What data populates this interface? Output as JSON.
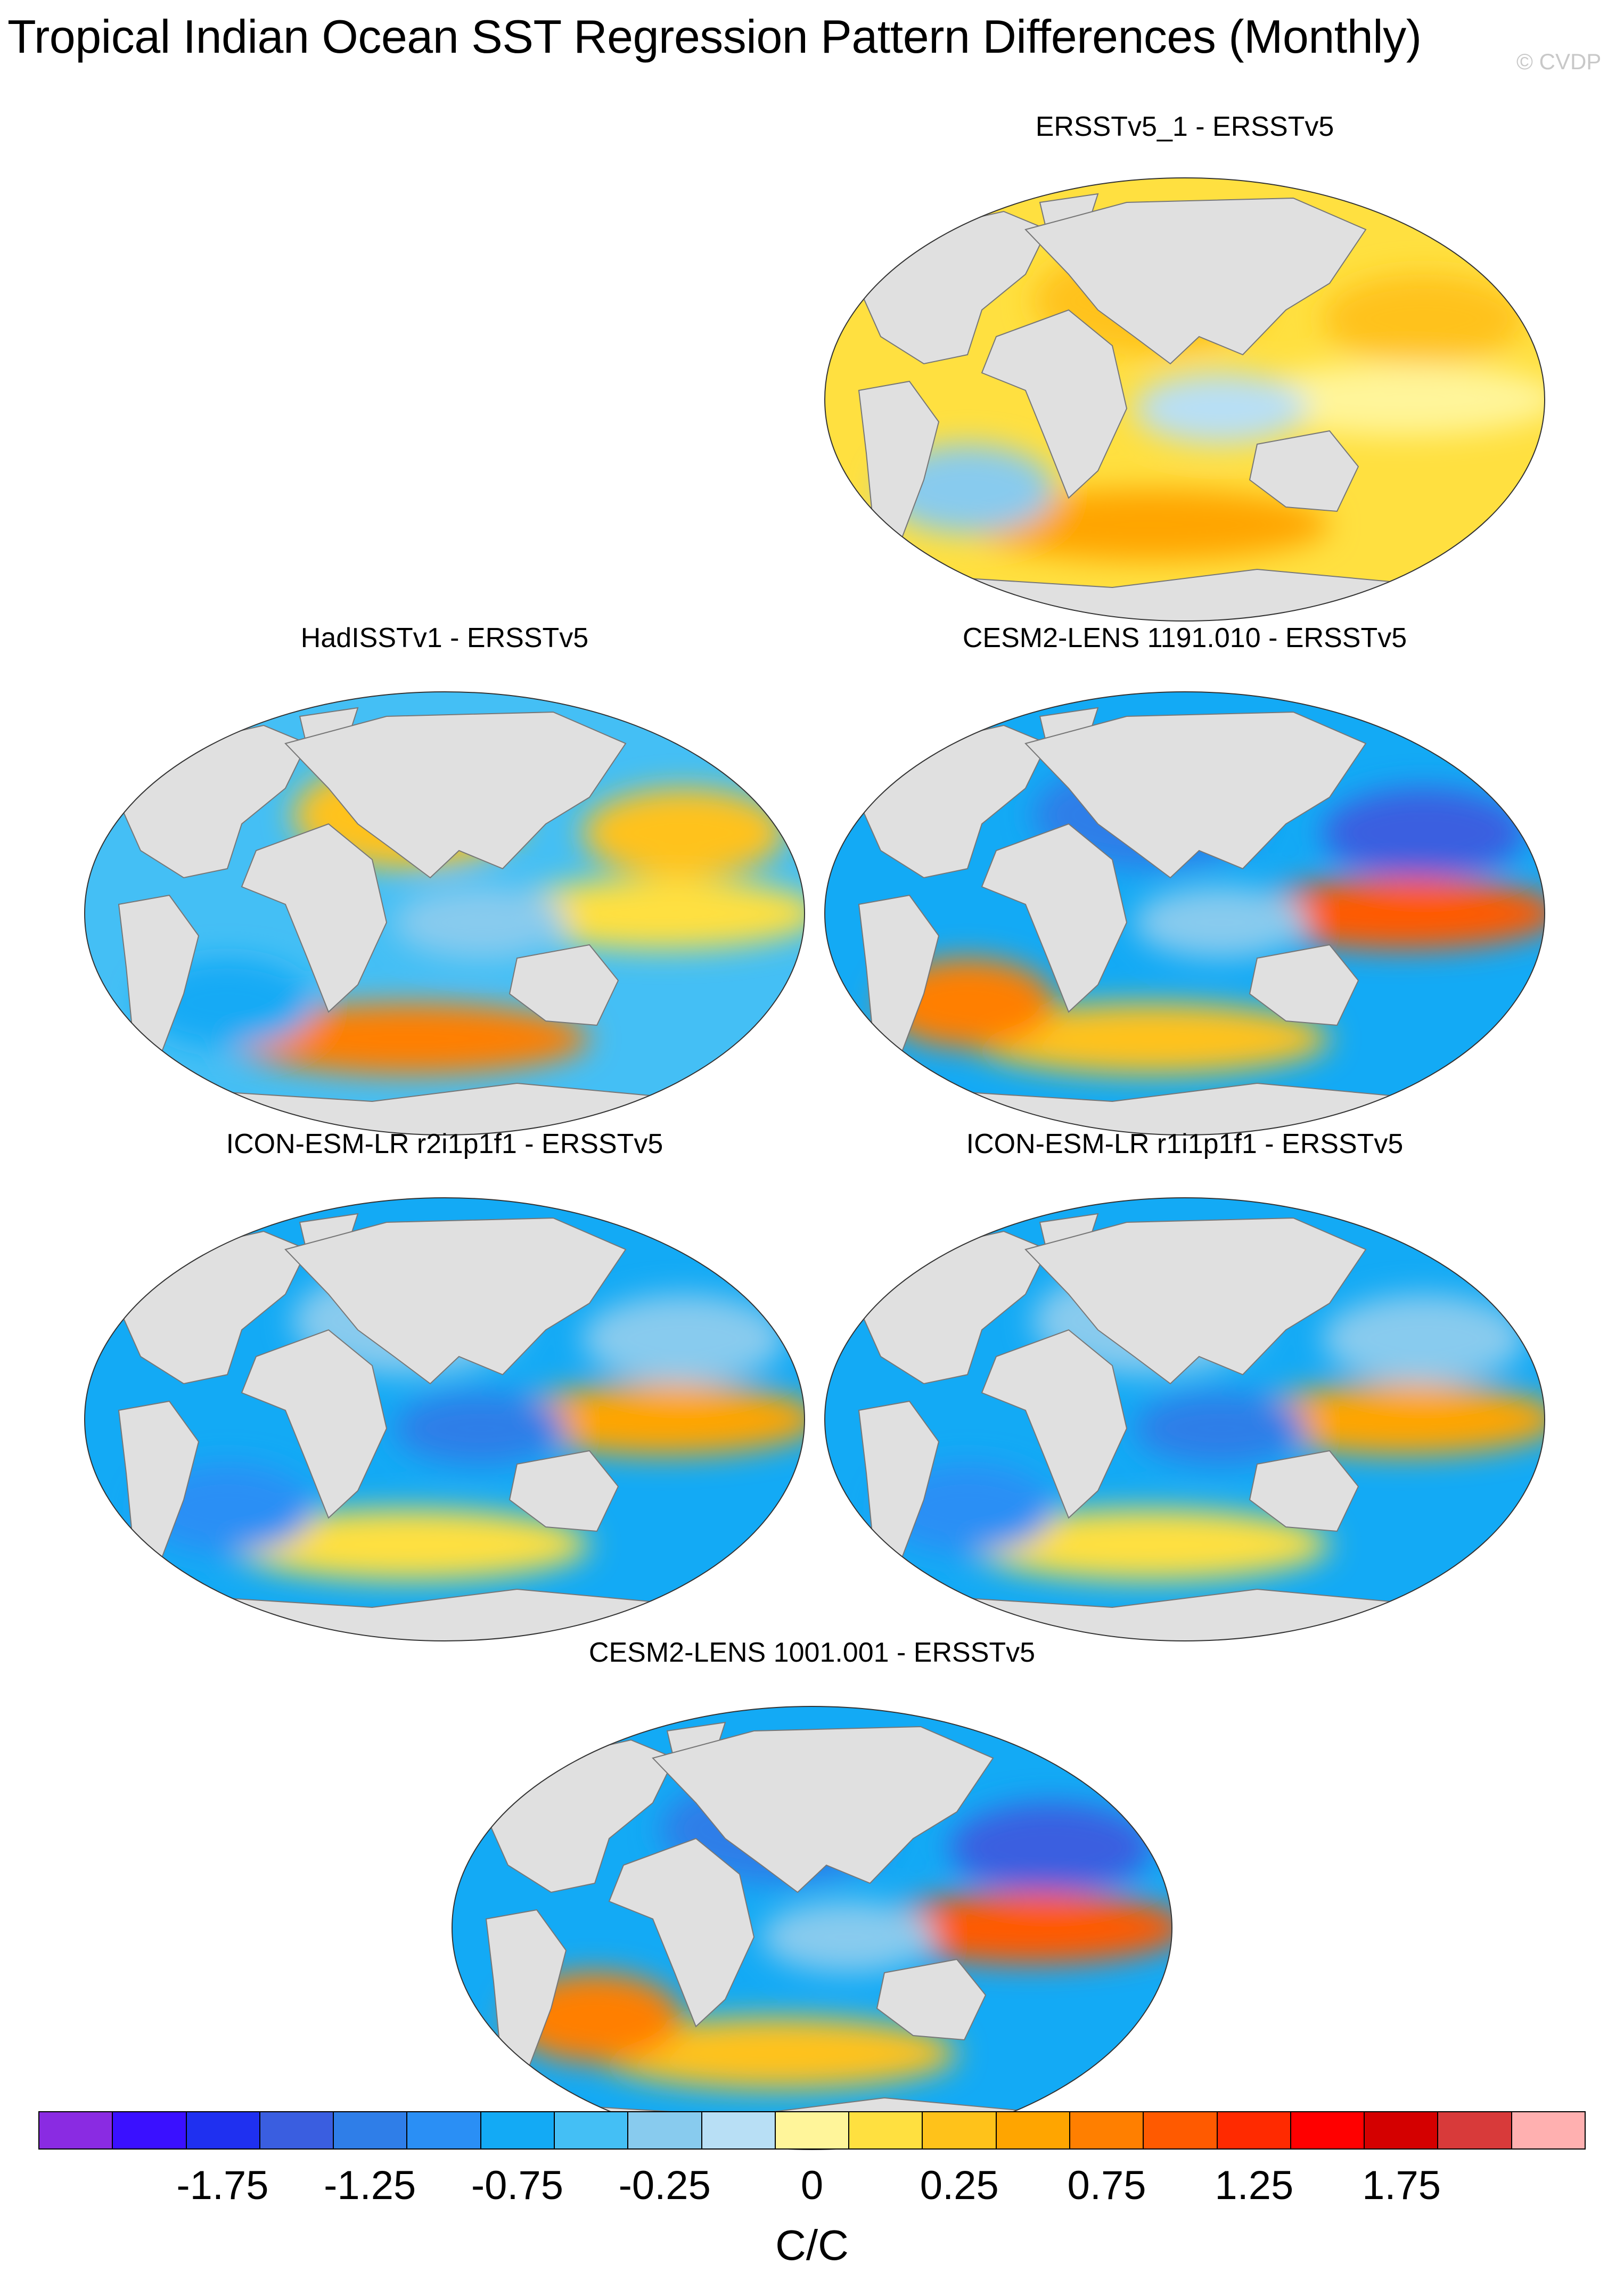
{
  "title": "Tropical Indian Ocean SST Regression Pattern Differences (Monthly)",
  "watermark": "© CVDP",
  "panels": [
    {
      "label": "ERSSTv5_1 - ERSSTv5",
      "pattern": "warm"
    },
    {
      "label": "HadISSTv1 - ERSSTv5",
      "pattern": "mixed"
    },
    {
      "label": "CESM2-LENS 1191.010 - ERSSTv5",
      "pattern": "cool-pacific"
    },
    {
      "label": "ICON-ESM-LR r2i1p1f1 - ERSSTv5",
      "pattern": "cool"
    },
    {
      "label": "ICON-ESM-LR r1i1p1f1 - ERSSTv5",
      "pattern": "cool"
    },
    {
      "label": "CESM2-LENS 1001.001 - ERSSTv5",
      "pattern": "cool-pacific"
    }
  ],
  "colorbar": {
    "colors": [
      "#8a2be2",
      "#3a10ff",
      "#1f30f0",
      "#3a5ee0",
      "#2f7ee8",
      "#2a8ff5",
      "#13aaf5",
      "#44bff5",
      "#88cbee",
      "#b8dff5",
      "#fff59a",
      "#ffe040",
      "#ffc21a",
      "#ffa500",
      "#ff7f00",
      "#ff5a00",
      "#ff2a00",
      "#ff0000",
      "#d40000",
      "#d83a3a",
      "#ffb0b0"
    ],
    "labels": [
      "-1.75",
      "-1.25",
      "-0.75",
      "-0.25",
      "0",
      "0.25",
      "0.75",
      "1.25",
      "1.75"
    ],
    "units": "C/C"
  }
}
